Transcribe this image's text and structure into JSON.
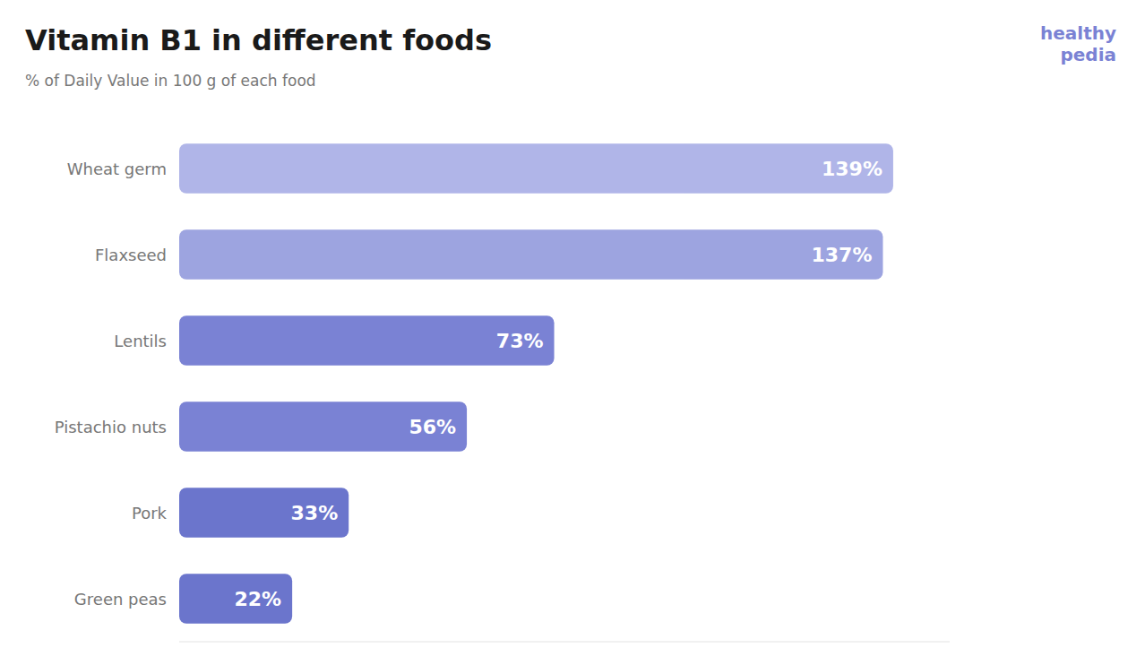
{
  "chart_data": {
    "type": "bar",
    "orientation": "horizontal",
    "title": "Vitamin B1 in different foods",
    "subtitle": "% of Daily Value in 100 g of each food",
    "categories": [
      "Wheat germ",
      "Flaxseed",
      "Lentils",
      "Pistachio nuts",
      "Pork",
      "Green peas"
    ],
    "values": [
      139,
      137,
      73,
      56,
      33,
      22
    ],
    "value_labels": [
      "139%",
      "137%",
      "73%",
      "56%",
      "33%",
      "22%"
    ],
    "colors": [
      "#b0b5e8",
      "#9da4e0",
      "#7a82d4",
      "#7a82d4",
      "#6b75cc",
      "#6b75cc"
    ],
    "xlim": [
      0,
      150
    ],
    "data_labels": true,
    "tick_labels": "y",
    "grid": false,
    "annotations": [
      {
        "text": "healthy\npedia",
        "color": "#7a82d4"
      }
    ]
  }
}
